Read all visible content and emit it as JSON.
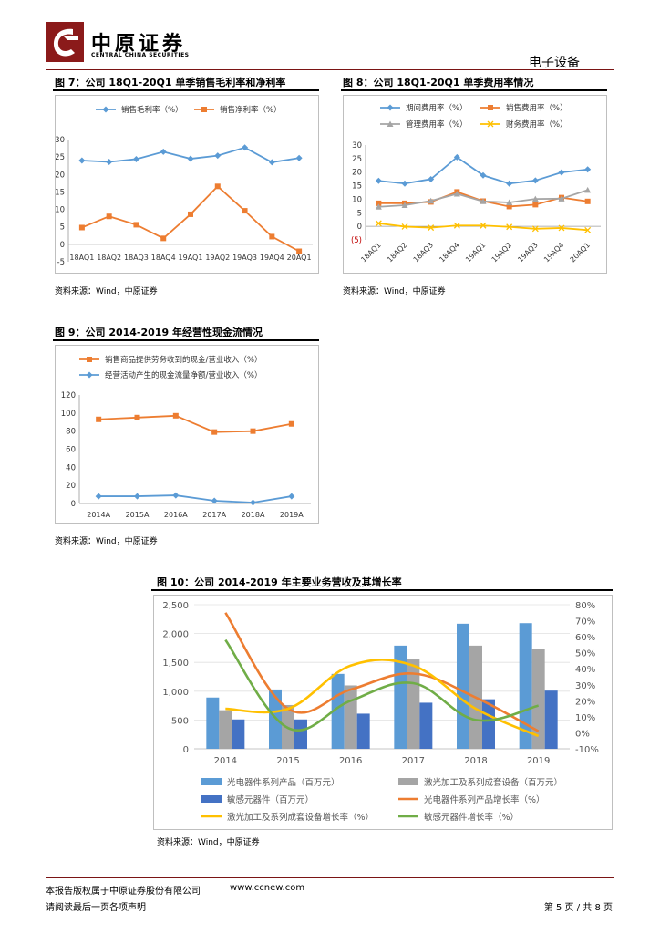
{
  "header": {
    "logo_cn": "中原证券",
    "logo_en": "CENTRAL CHINA SECURITIES",
    "sector": "电子设备"
  },
  "colors": {
    "brand": "#8b1a1a",
    "blue": "#5b9bd5",
    "orange": "#ed7d31",
    "gray": "#a5a5a5",
    "yellow": "#ffc000",
    "darkblue": "#4472c4",
    "green": "#70ad47"
  },
  "fig7": {
    "title": "图 7：公司 18Q1-20Q1 单季销售毛利率和净利率",
    "source": "资料来源：Wind，中原证券"
  },
  "fig8": {
    "title": "图 8：公司 18Q1-20Q1 单季费用率情况",
    "source": "资料来源：Wind，中原证券"
  },
  "fig9": {
    "title": "图 9：公司 2014-2019 年经营性现金流情况",
    "source": "资料来源：Wind，中原证券"
  },
  "fig10": {
    "title": "图 10：公司 2014-2019 年主要业务营收及其增长率",
    "source": "资料来源：Wind，中原证券"
  },
  "footer": {
    "copyright": "本报告版权属于中原证券股份有限公司",
    "website": "www.ccnew.com",
    "disclaimer": "请阅读最后一页各项声明",
    "page": "第 5 页 / 共 8 页"
  },
  "chart_data": [
    {
      "id": "fig7",
      "type": "line",
      "categories": [
        "18AQ1",
        "18AQ2",
        "18AQ3",
        "18AQ4",
        "19AQ1",
        "19AQ2",
        "19AQ3",
        "19AQ4",
        "20AQ1"
      ],
      "series": [
        {
          "name": "销售毛利率（%）",
          "color": "#5b9bd5",
          "marker": "diamond",
          "values": [
            24.0,
            23.6,
            24.4,
            26.5,
            24.5,
            25.4,
            27.7,
            23.5,
            24.7
          ]
        },
        {
          "name": "销售净利率（%）",
          "color": "#ed7d31",
          "marker": "square",
          "values": [
            4.8,
            8.0,
            5.6,
            1.7,
            8.6,
            16.6,
            9.6,
            2.2,
            -2.0
          ]
        }
      ],
      "ylim": [
        -5,
        30
      ],
      "yticks": [
        "-5",
        "0",
        "5",
        "10",
        "15",
        "20",
        "25",
        "30"
      ],
      "legend": "top"
    },
    {
      "id": "fig8",
      "type": "line",
      "categories": [
        "18AQ1",
        "18AQ2",
        "18AQ3",
        "18AQ4",
        "19AQ1",
        "19AQ2",
        "19AQ3",
        "19AQ4",
        "20AQ1"
      ],
      "series": [
        {
          "name": "期间费用率（%）",
          "color": "#5b9bd5",
          "marker": "diamond",
          "values": [
            16.8,
            15.8,
            17.4,
            25.5,
            18.8,
            15.8,
            16.9,
            19.9,
            21.0
          ]
        },
        {
          "name": "销售费用率（%）",
          "color": "#ed7d31",
          "marker": "square",
          "values": [
            8.5,
            8.5,
            9.0,
            12.7,
            9.3,
            7.3,
            8.0,
            10.6,
            9.2
          ]
        },
        {
          "name": "管理费用率（%）",
          "color": "#a5a5a5",
          "marker": "triangle",
          "values": [
            7.2,
            7.8,
            9.4,
            12.0,
            9.2,
            8.8,
            10.1,
            10.2,
            13.4
          ]
        },
        {
          "name": "财务费用率（%）",
          "color": "#ffc000",
          "marker": "x",
          "values": [
            1.1,
            -0.1,
            -0.5,
            0.3,
            0.3,
            -0.2,
            -0.9,
            -0.6,
            -1.4
          ]
        }
      ],
      "ylim": [
        -5,
        30
      ],
      "yticks": [
        "(5)",
        "0",
        "5",
        "10",
        "15",
        "20",
        "25",
        "30"
      ],
      "legend": "top"
    },
    {
      "id": "fig9",
      "type": "line",
      "categories": [
        "2014A",
        "2015A",
        "2016A",
        "2017A",
        "2018A",
        "2019A"
      ],
      "series": [
        {
          "name": "销售商品提供劳务收到的现金/营业收入（%）",
          "color": "#ed7d31",
          "marker": "square",
          "values": [
            93,
            95,
            97,
            79,
            80,
            88
          ]
        },
        {
          "name": "经营活动产生的现金流量净额/营业收入（%）",
          "color": "#5b9bd5",
          "marker": "diamond",
          "values": [
            8,
            8,
            9,
            3,
            1,
            8
          ]
        }
      ],
      "ylim": [
        0,
        120
      ],
      "yticks": [
        "0",
        "20",
        "40",
        "60",
        "80",
        "100",
        "120"
      ],
      "legend": "top"
    },
    {
      "id": "fig10",
      "type": "bar",
      "categories": [
        "2014",
        "2015",
        "2016",
        "2017",
        "2018",
        "2019"
      ],
      "bars": [
        {
          "name": "光电器件系列产品（百万元）",
          "color": "#5b9bd5",
          "values": [
            890,
            1030,
            1300,
            1790,
            2170,
            2180
          ]
        },
        {
          "name": "激光加工及系列成套设备（百万元）",
          "color": "#a5a5a5",
          "values": [
            670,
            760,
            1100,
            1550,
            1790,
            1730
          ]
        },
        {
          "name": "敏感元器件（百万元）",
          "color": "#4472c4",
          "values": [
            510,
            510,
            610,
            800,
            860,
            1010
          ]
        }
      ],
      "lines": [
        {
          "name": "光电器件系列产品增长率（%）",
          "color": "#ed7d31",
          "values": [
            75,
            15,
            27,
            37,
            22,
            1
          ]
        },
        {
          "name": "激光加工及系列成套设备增长率（%）",
          "color": "#ffc000",
          "values": [
            15,
            15,
            42,
            42,
            15,
            -2
          ]
        },
        {
          "name": "敏感元器件增长率（%）",
          "color": "#70ad47",
          "values": [
            58,
            3,
            20,
            31,
            8,
            17
          ]
        }
      ],
      "ylim": [
        0,
        2500
      ],
      "yticks": [
        "0",
        "500",
        "1,000",
        "1,500",
        "2,000",
        "2,500"
      ],
      "y2lim": [
        -10,
        80
      ],
      "y2ticks": [
        "-10%",
        "0%",
        "10%",
        "20%",
        "30%",
        "40%",
        "50%",
        "60%",
        "70%",
        "80%"
      ],
      "legend": "bottom"
    }
  ]
}
